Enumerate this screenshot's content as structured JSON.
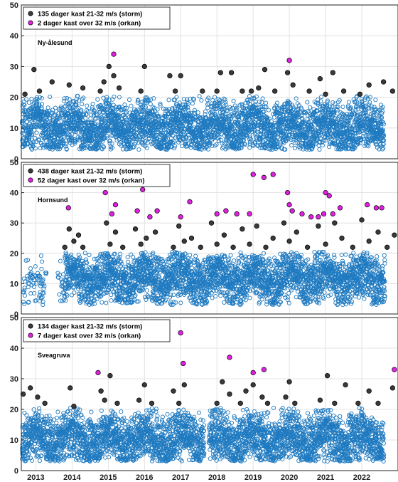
{
  "chart_data": [
    {
      "type": "scatter",
      "station": "Ny-ålesund",
      "ylim": [
        0,
        50
      ],
      "yticks": [
        0,
        10,
        20,
        30,
        40,
        50
      ],
      "xlim": [
        2012.6,
        2023.0
      ],
      "xticks": [
        "2013",
        "2014",
        "2015",
        "2016",
        "2017",
        "2018",
        "2019",
        "2020",
        "2021",
        "2022"
      ],
      "legend": [
        "135 dager kast 21-32 m/s (storm)",
        "2 dager kast over 32 m/s (orkan)"
      ],
      "legend_placement": "top-left",
      "grid": true,
      "series": [
        {
          "name": "135 dager kast 21-32 m/s (storm)",
          "color": "#3a3a3a",
          "x": [
            2012.7,
            2012.95,
            2013.1,
            2013.45,
            2013.92,
            2014.3,
            2014.78,
            2014.88,
            2015.02,
            2015.15,
            2015.3,
            2015.9,
            2016.0,
            2016.7,
            2016.85,
            2017.0,
            2017.6,
            2018.0,
            2018.1,
            2018.4,
            2018.7,
            2018.95,
            2019.15,
            2019.32,
            2019.6,
            2019.95,
            2020.1,
            2020.55,
            2020.85,
            2021.0,
            2021.2,
            2021.5,
            2021.95,
            2022.2,
            2022.6,
            2022.85
          ],
          "y": [
            21,
            29,
            22,
            25,
            24,
            23,
            22,
            25,
            30,
            27,
            23,
            22,
            30,
            27,
            22,
            27,
            22,
            22,
            28,
            28,
            22,
            22,
            23,
            29,
            22,
            28,
            24,
            22,
            26,
            21,
            28,
            22,
            21,
            24,
            25,
            22
          ]
        },
        {
          "name": "2 dager kast over 32 m/s (orkan)",
          "color": "#e020e0",
          "x": [
            2015.15,
            2020.0
          ],
          "y": [
            34,
            32
          ]
        }
      ]
    },
    {
      "type": "scatter",
      "station": "Hornsund",
      "ylim": [
        0,
        50
      ],
      "yticks": [
        0,
        10,
        20,
        30,
        40,
        50
      ],
      "xlim": [
        2012.6,
        2023.0
      ],
      "xticks": [
        "2013",
        "2014",
        "2015",
        "2016",
        "2017",
        "2018",
        "2019",
        "2020",
        "2021",
        "2022"
      ],
      "legend": [
        "438 dager kast 21-32 m/s (storm)",
        "52 dager kast over 32 m/s (orkan)"
      ],
      "legend_placement": "top-left",
      "grid": true,
      "series": [
        {
          "name": "438 dager kast 21-32 m/s (storm)",
          "color": "#3a3a3a",
          "x": [
            2013.8,
            2013.92,
            2014.05,
            2014.18,
            2014.3,
            2014.95,
            2015.05,
            2015.2,
            2015.4,
            2015.75,
            2015.9,
            2016.05,
            2016.3,
            2016.8,
            2016.95,
            2017.1,
            2017.3,
            2017.55,
            2017.85,
            2018.0,
            2018.2,
            2018.45,
            2018.7,
            2018.9,
            2019.1,
            2019.35,
            2019.55,
            2019.85,
            2020.0,
            2020.2,
            2020.5,
            2020.8,
            2021.0,
            2021.25,
            2021.45,
            2021.75,
            2022.0,
            2022.2,
            2022.45,
            2022.7,
            2022.9
          ],
          "y": [
            22,
            28,
            24,
            26,
            22,
            30,
            23,
            27,
            22,
            28,
            23,
            25,
            27,
            22,
            29,
            24,
            25,
            22,
            30,
            23,
            26,
            22,
            28,
            23,
            29,
            22,
            25,
            30,
            24,
            27,
            22,
            29,
            23,
            30,
            25,
            22,
            31,
            24,
            27,
            22,
            26
          ]
        },
        {
          "name": "52 dager kast over 32 m/s (orkan)",
          "color": "#e020e0",
          "x": [
            2013.9,
            2014.92,
            2015.1,
            2015.2,
            2015.8,
            2015.95,
            2016.15,
            2016.35,
            2017.0,
            2017.25,
            2018.0,
            2018.25,
            2018.55,
            2018.9,
            2019.0,
            2019.3,
            2019.55,
            2019.95,
            2020.0,
            2020.08,
            2020.35,
            2020.6,
            2020.8,
            2020.95,
            2021.0,
            2021.1,
            2021.2,
            2021.4,
            2022.15,
            2022.4,
            2022.55
          ],
          "y": [
            35,
            40,
            33,
            36,
            34,
            41,
            32,
            34,
            32,
            37,
            33,
            34,
            33,
            33,
            46,
            45,
            46,
            40,
            36,
            34,
            33,
            32,
            32,
            33,
            40,
            39,
            33,
            35,
            36,
            35,
            35
          ]
        }
      ]
    },
    {
      "type": "scatter",
      "station": "Sveagruva",
      "ylim": [
        0,
        50
      ],
      "yticks": [
        0,
        10,
        20,
        30,
        40,
        50
      ],
      "xlim": [
        2012.6,
        2023.0
      ],
      "xticks": [
        "2013",
        "2014",
        "2015",
        "2016",
        "2017",
        "2018",
        "2019",
        "2020",
        "2021",
        "2022"
      ],
      "legend": [
        "134 dager kast 21-32 m/s (storm)",
        "7 dager kast over 32 m/s (orkan)"
      ],
      "legend_placement": "top-left",
      "grid": true,
      "series": [
        {
          "name": "134 dager kast 21-32 m/s (storm)",
          "color": "#3a3a3a",
          "x": [
            2012.65,
            2012.85,
            2013.05,
            2013.25,
            2013.95,
            2014.05,
            2014.8,
            2014.9,
            2015.05,
            2015.25,
            2015.85,
            2016.0,
            2016.2,
            2016.8,
            2016.95,
            2017.1,
            2018.0,
            2018.15,
            2018.35,
            2018.65,
            2018.8,
            2019.0,
            2019.25,
            2019.4,
            2019.9,
            2020.0,
            2020.15,
            2020.85,
            2021.05,
            2021.25,
            2021.55,
            2021.9,
            2022.2,
            2022.45,
            2022.85
          ],
          "y": [
            25,
            27,
            24,
            22,
            27,
            21,
            26,
            23,
            31,
            22,
            23,
            28,
            22,
            26,
            22,
            28,
            22,
            29,
            25,
            22,
            26,
            28,
            24,
            22,
            24,
            29,
            22,
            23,
            31,
            22,
            28,
            22,
            26,
            22,
            27
          ]
        },
        {
          "name": "7 dager kast over 32 m/s (orkan)",
          "color": "#e020e0",
          "x": [
            2014.72,
            2017.0,
            2017.07,
            2018.35,
            2019.0,
            2019.3,
            2022.9
          ],
          "y": [
            32,
            45,
            35,
            37,
            32,
            33,
            33
          ]
        }
      ]
    }
  ],
  "background_series_color": "#1f7ac0",
  "storm_color": "#3a3a3a",
  "orkan_color": "#e020e0"
}
